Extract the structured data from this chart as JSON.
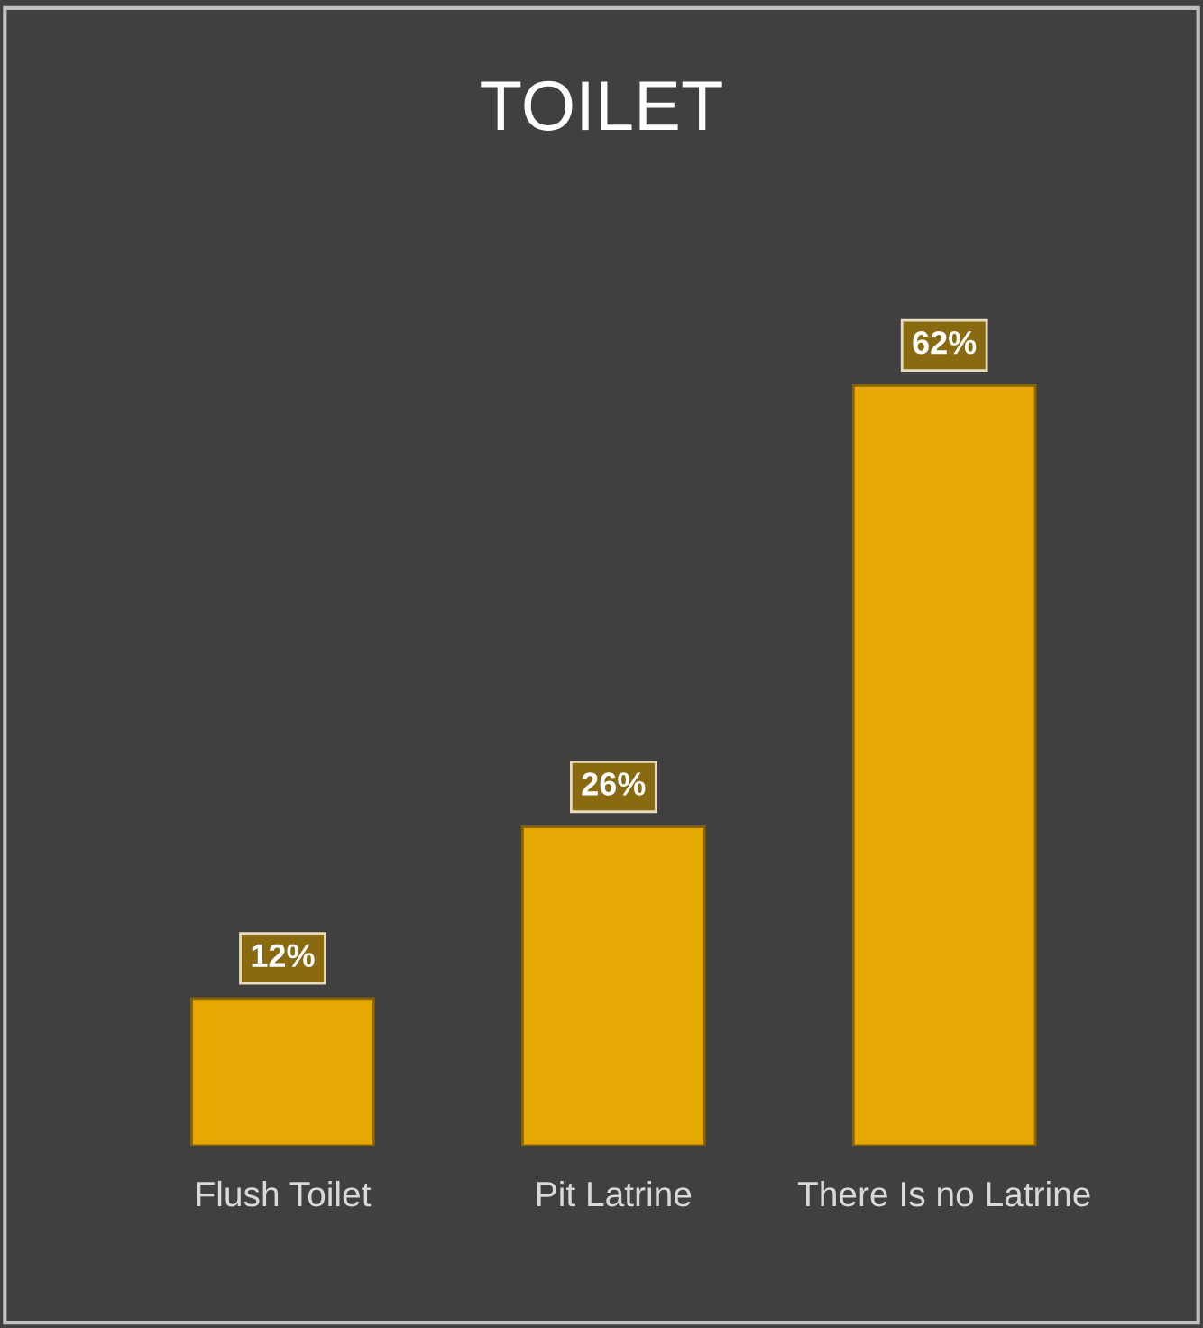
{
  "chart_data": {
    "type": "bar",
    "title": "TOILET",
    "categories": [
      "Flush Toilet",
      "Pit Latrine",
      "There Is no Latrine"
    ],
    "values": [
      12,
      26,
      62
    ],
    "value_labels": [
      "12%",
      "26%",
      "62%"
    ],
    "color": "#e6a800",
    "grid": false,
    "legend": false
  }
}
